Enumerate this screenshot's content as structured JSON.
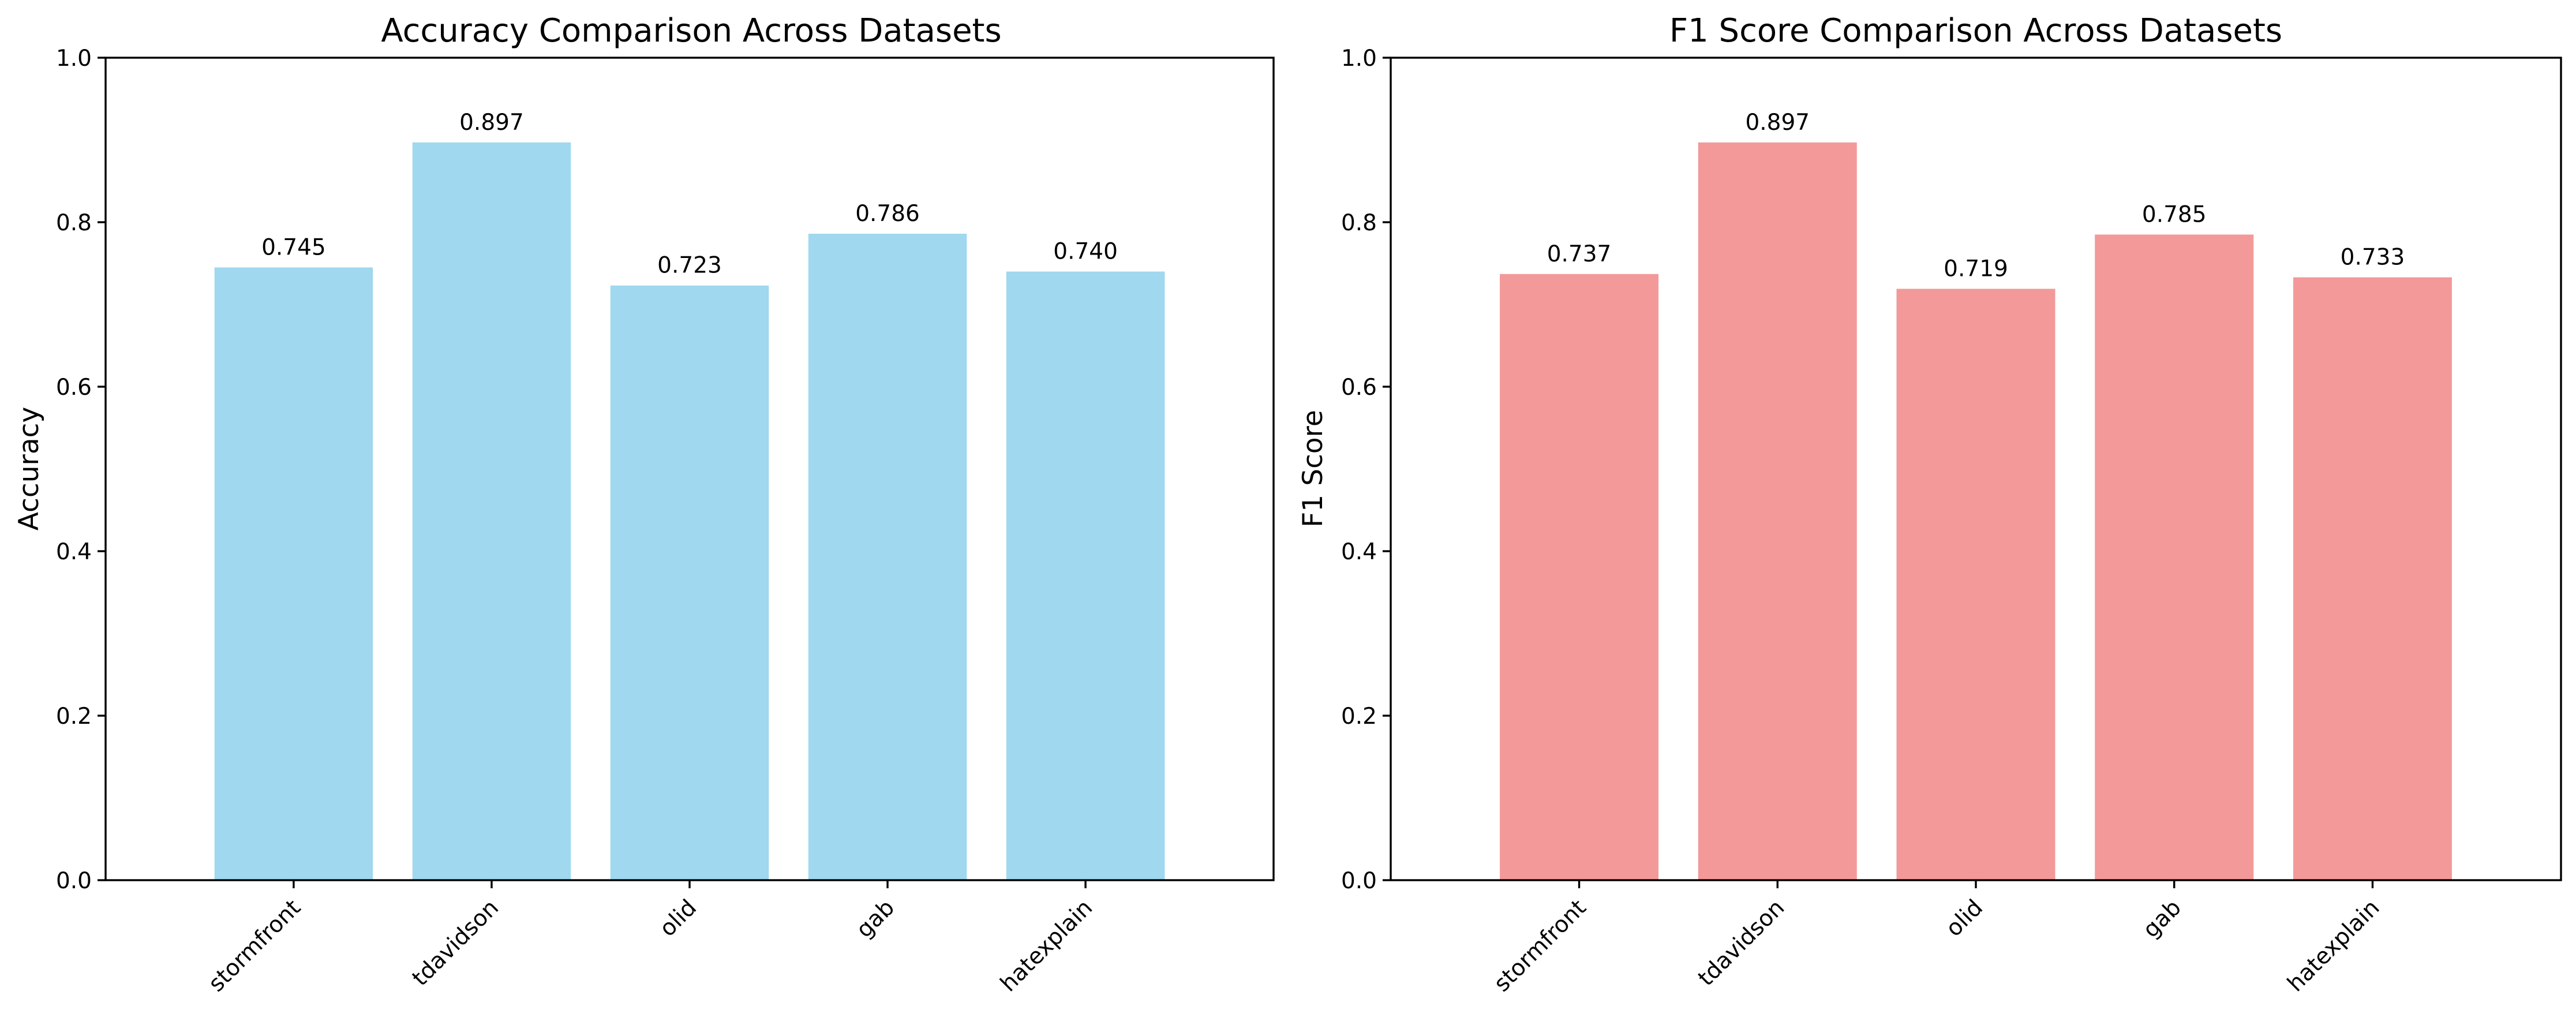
{
  "chart_data": [
    {
      "type": "bar",
      "title": "Accuracy Comparison Across Datasets",
      "xlabel": "",
      "ylabel": "Accuracy",
      "categories": [
        "stormfront",
        "tdavidson",
        "olid",
        "gab",
        "hatexplain"
      ],
      "values": [
        0.745,
        0.897,
        0.723,
        0.786,
        0.74
      ],
      "value_labels": [
        "0.745",
        "0.897",
        "0.723",
        "0.786",
        "0.740"
      ],
      "ylim": [
        0,
        1.0
      ],
      "yticks": [
        "0.0",
        "0.2",
        "0.4",
        "0.6",
        "0.8",
        "1.0"
      ],
      "bar_color": "#87ceeb",
      "grid": false
    },
    {
      "type": "bar",
      "title": "F1 Score Comparison Across Datasets",
      "xlabel": "",
      "ylabel": "F1 Score",
      "categories": [
        "stormfront",
        "tdavidson",
        "olid",
        "gab",
        "hatexplain"
      ],
      "values": [
        0.737,
        0.897,
        0.719,
        0.785,
        0.733
      ],
      "value_labels": [
        "0.737",
        "0.897",
        "0.719",
        "0.785",
        "0.733"
      ],
      "ylim": [
        0,
        1.0
      ],
      "yticks": [
        "0.0",
        "0.2",
        "0.4",
        "0.6",
        "0.8",
        "1.0"
      ],
      "bar_color": "#f08080",
      "grid": false
    }
  ]
}
